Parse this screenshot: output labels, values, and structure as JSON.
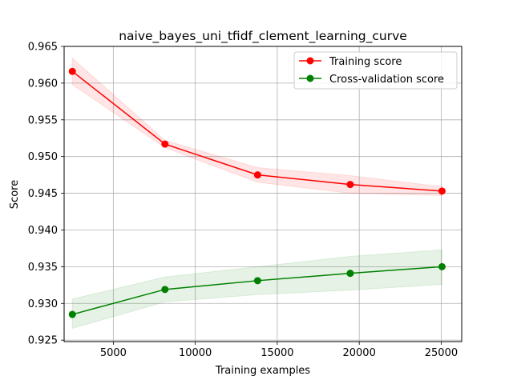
{
  "chart_data": {
    "type": "line",
    "title": "naive_bayes_uni_tfidf_clement_learning_curve",
    "xlabel": "Training examples",
    "ylabel": "Score",
    "xlim": [
      2000,
      26250
    ],
    "ylim": [
      0.9248,
      0.965
    ],
    "x_ticks": [
      5000,
      10000,
      15000,
      20000,
      25000
    ],
    "x_tick_labels": [
      "5000",
      "10000",
      "15000",
      "20000",
      "25000"
    ],
    "y_ticks": [
      0.925,
      0.93,
      0.935,
      0.94,
      0.945,
      0.95,
      0.955,
      0.96,
      0.965
    ],
    "y_tick_labels": [
      "0.925",
      "0.930",
      "0.935",
      "0.940",
      "0.945",
      "0.950",
      "0.955",
      "0.960",
      "0.965"
    ],
    "grid": true,
    "legend_position": "top-right",
    "x": [
      2500,
      8150,
      13800,
      19450,
      25050
    ],
    "series": [
      {
        "name": "Training score",
        "color": "#ff0000",
        "band_color": "#ff0000",
        "values": [
          0.9616,
          0.9517,
          0.9475,
          0.9462,
          0.9453
        ],
        "lower": [
          0.9598,
          0.9512,
          0.9465,
          0.945,
          0.9447
        ],
        "upper": [
          0.9634,
          0.9522,
          0.9485,
          0.9474,
          0.9459
        ]
      },
      {
        "name": "Cross-validation score",
        "color": "#008000",
        "band_color": "#008000",
        "values": [
          0.9285,
          0.9319,
          0.9331,
          0.9341,
          0.935
        ],
        "lower": [
          0.9266,
          0.9302,
          0.9312,
          0.9318,
          0.9326
        ],
        "upper": [
          0.9306,
          0.9336,
          0.935,
          0.9364,
          0.9373
        ]
      }
    ]
  }
}
